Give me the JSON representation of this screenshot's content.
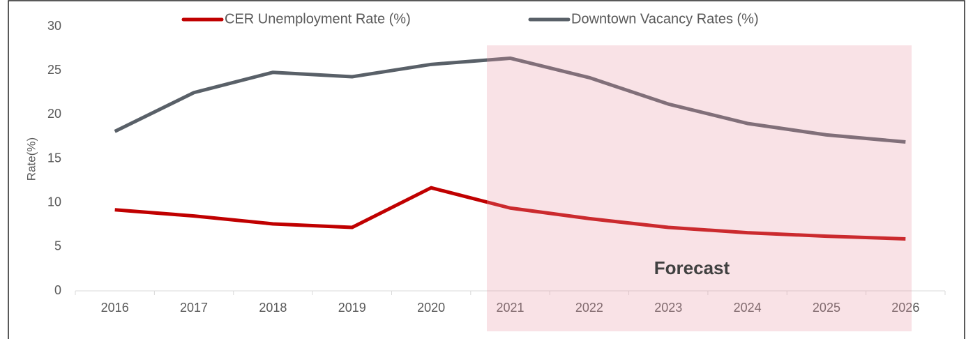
{
  "chart_data": {
    "type": "line",
    "y_label": "Rate(%)",
    "categories": [
      "2016",
      "2017",
      "2018",
      "2019",
      "2020",
      "2021",
      "2022",
      "2023",
      "2024",
      "2025",
      "2026"
    ],
    "series": [
      {
        "name": "CER Unemployment Rate (%)",
        "color": "#c00000",
        "values": [
          9.2,
          8.5,
          7.6,
          7.2,
          11.7,
          9.4,
          8.2,
          7.2,
          6.6,
          6.2,
          5.9
        ]
      },
      {
        "name": "Downtown Vacancy Rates (%)",
        "color": "#596068",
        "values": [
          18.1,
          22.5,
          24.8,
          24.3,
          25.7,
          26.4,
          24.2,
          21.2,
          19.0,
          17.7,
          16.9
        ]
      }
    ],
    "ylim": [
      0,
      30
    ],
    "yticks": [
      0,
      5,
      10,
      15,
      20,
      25,
      30
    ],
    "grid": false,
    "legend": "top",
    "annotation": "Forecast"
  }
}
